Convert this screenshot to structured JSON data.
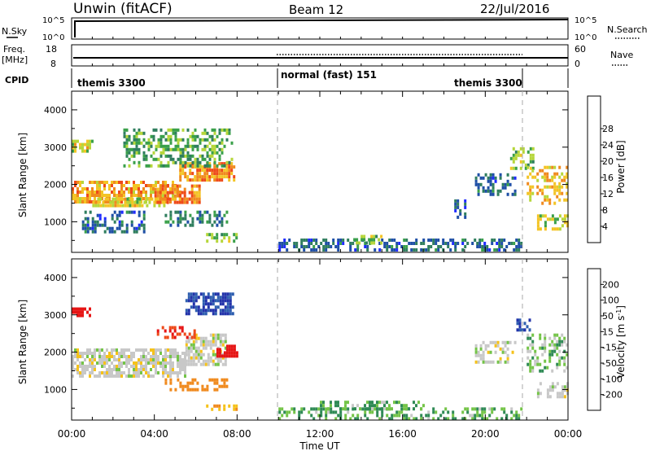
{
  "header": {
    "station": "Unwin (fitACF)",
    "beam": "Beam 12",
    "date": "22/Jul/2016"
  },
  "top_panels": {
    "nsky_label": "N.Sky",
    "nsearch_label": "N.Search",
    "nsky_ticks": [
      "10^5",
      "10^0"
    ],
    "nsearch_ticks": [
      "10^5",
      "10^0"
    ],
    "freq_label": "Freq.",
    "freq_unit": "[MHz]",
    "freq_ticks": [
      "18",
      "8"
    ],
    "nave_label": "Nave",
    "nave_ticks": [
      "60",
      "0"
    ],
    "cpid_label": "CPID",
    "cpid_segments": [
      {
        "label": "themis 3300",
        "start": 0,
        "end": 10
      },
      {
        "label": "normal (fast) 151",
        "start": 10,
        "end": 22
      },
      {
        "label": "themis 3300",
        "start": 22,
        "end": 24
      }
    ]
  },
  "axes": {
    "x_ticks": [
      "00:00",
      "04:00",
      "08:00",
      "12:00",
      "16:00",
      "20:00",
      "00:00"
    ],
    "x_label": "Time UT",
    "y_label": "Slant Range [km]",
    "y_ticks": [
      "1000",
      "2000",
      "3000",
      "4000"
    ]
  },
  "colorbars": {
    "power": {
      "label": "Power [dB]",
      "ticks": [
        "4",
        "8",
        "12",
        "16",
        "20",
        "24",
        "28"
      ],
      "colors": [
        "#1f2bff",
        "#1f4fa6",
        "#2f7e5e",
        "#3aa04a",
        "#b6d63a",
        "#f3c425",
        "#f08a1e",
        "#ee4a1a",
        "#e81818"
      ]
    },
    "velocity": {
      "label": "Velocity [m s^-1]",
      "ticks": [
        "200",
        "100",
        "50",
        "15",
        "-15",
        "-50",
        "-100",
        "-200"
      ],
      "colors": [
        "#2233aa",
        "#2f5fb0",
        "#2f8a55",
        "#74c448",
        "#c8c8c8",
        "#f5c21b",
        "#f08a1e",
        "#ee4a1a",
        "#e61515"
      ]
    }
  },
  "chart_data": [
    {
      "type": "heatmap",
      "title": "Power",
      "xlim": [
        0,
        24
      ],
      "ylim": [
        180,
        4500
      ],
      "x_unit": "hours UT",
      "y_unit": "km",
      "regions": [
        {
          "t0": 0.0,
          "t1": 5.3,
          "r0": 1500,
          "r1": 2100,
          "value": 24
        },
        {
          "t0": 1.0,
          "t1": 4.5,
          "r0": 1400,
          "r1": 1650,
          "value": 20
        },
        {
          "t0": 4.0,
          "t1": 6.2,
          "r0": 1500,
          "r1": 2000,
          "value": 27
        },
        {
          "t0": 5.2,
          "t1": 7.8,
          "r0": 2100,
          "r1": 2600,
          "value": 26
        },
        {
          "t0": 0.0,
          "t1": 1.0,
          "r0": 2900,
          "r1": 3200,
          "value": 20
        },
        {
          "t0": 2.5,
          "t1": 7.8,
          "r0": 2500,
          "r1": 3500,
          "value": 14
        },
        {
          "t0": 0.5,
          "t1": 3.5,
          "r0": 700,
          "r1": 1300,
          "value": 8
        },
        {
          "t0": 4.5,
          "t1": 7.5,
          "r0": 900,
          "r1": 1300,
          "value": 10
        },
        {
          "t0": 6.5,
          "t1": 8.0,
          "r0": 500,
          "r1": 700,
          "value": 16
        },
        {
          "t0": 10.0,
          "t1": 21.8,
          "r0": 250,
          "r1": 550,
          "value": 8
        },
        {
          "t0": 13.5,
          "t1": 15.0,
          "r0": 400,
          "r1": 650,
          "value": 16
        },
        {
          "t0": 18.5,
          "t1": 19.0,
          "r0": 1100,
          "r1": 1600,
          "value": 7
        },
        {
          "t0": 19.5,
          "t1": 21.5,
          "r0": 1700,
          "r1": 2300,
          "value": 8
        },
        {
          "t0": 21.2,
          "t1": 22.3,
          "r0": 2400,
          "r1": 3000,
          "value": 16
        },
        {
          "t0": 22.0,
          "t1": 24.0,
          "r0": 1500,
          "r1": 2500,
          "value": 22
        },
        {
          "t0": 22.5,
          "t1": 24.0,
          "r0": 850,
          "r1": 1200,
          "value": 19
        }
      ]
    },
    {
      "type": "heatmap",
      "title": "Velocity",
      "xlim": [
        0,
        24
      ],
      "ylim": [
        180,
        4500
      ],
      "x_unit": "hours UT",
      "y_unit": "km",
      "regions": [
        {
          "t0": 0.0,
          "t1": 5.5,
          "r0": 1400,
          "r1": 2100,
          "value": 0
        },
        {
          "t0": 5.5,
          "t1": 7.5,
          "r0": 1700,
          "r1": 2500,
          "value": 0
        },
        {
          "t0": 0.0,
          "t1": 0.9,
          "r0": 2950,
          "r1": 3200,
          "value": -200
        },
        {
          "t0": 5.5,
          "t1": 7.8,
          "r0": 3000,
          "r1": 3600,
          "value": 150
        },
        {
          "t0": 7.0,
          "t1": 8.0,
          "r0": 1900,
          "r1": 2200,
          "value": -200
        },
        {
          "t0": 4.5,
          "t1": 7.5,
          "r0": 1000,
          "r1": 1300,
          "value": -80
        },
        {
          "t0": 6.5,
          "t1": 8.0,
          "r0": 450,
          "r1": 600,
          "value": -40
        },
        {
          "t0": 4.0,
          "t1": 6.0,
          "r0": 2400,
          "r1": 2700,
          "value": -150
        },
        {
          "t0": 10.0,
          "t1": 21.8,
          "r0": 220,
          "r1": 520,
          "value": 30
        },
        {
          "t0": 12.0,
          "t1": 17.0,
          "r0": 500,
          "r1": 700,
          "value": 30
        },
        {
          "t0": 19.5,
          "t1": 21.5,
          "r0": 1700,
          "r1": 2300,
          "value": 0
        },
        {
          "t0": 22.0,
          "t1": 24.0,
          "r0": 1500,
          "r1": 2500,
          "value": 20
        },
        {
          "t0": 22.5,
          "t1": 24.0,
          "r0": 850,
          "r1": 1200,
          "value": 0
        },
        {
          "t0": 21.5,
          "t1": 22.2,
          "r0": 2600,
          "r1": 2900,
          "value": 150
        }
      ]
    }
  ]
}
